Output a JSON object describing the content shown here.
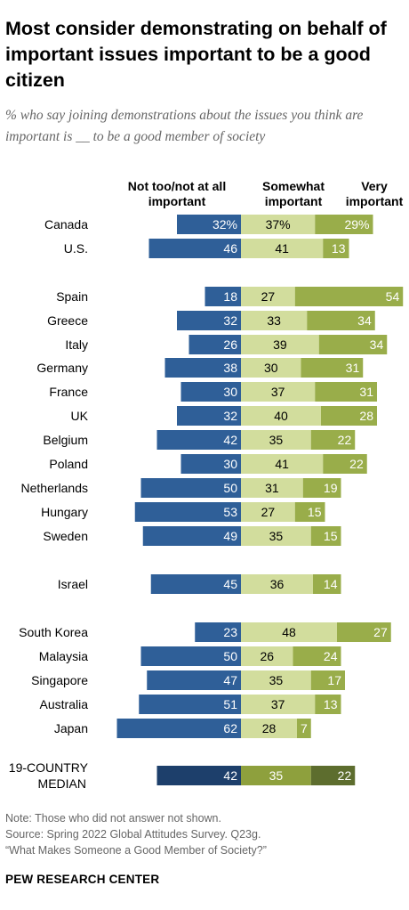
{
  "title": "Most consider demonstrating on behalf of important issues important to be a good citizen",
  "subtitle": "% who say joining demonstrations about the issues you think are important is __ to be a good member of society",
  "legend": {
    "not": "Not too/not at all important",
    "somewhat": "Somewhat important",
    "very": "Very important"
  },
  "colors": {
    "not": "#2f5f98",
    "somewhat": "#d2dd9d",
    "very": "#99ad4a",
    "median_not": "#1d3f6b",
    "median_somewhat": "#8ea03d",
    "median_very": "#5d6d2e"
  },
  "chart_data": {
    "type": "bar",
    "orientation": "horizontal-diverging",
    "series_names": [
      "Not too/not at all important",
      "Somewhat important",
      "Very important"
    ],
    "rows": [
      {
        "label": "Canada",
        "not": 32,
        "somewhat": 37,
        "very": 29,
        "labels": [
          "32%",
          "37%",
          "29%"
        ]
      },
      {
        "label": "U.S.",
        "not": 46,
        "somewhat": 41,
        "very": 13
      },
      {
        "label": "Spain",
        "not": 18,
        "somewhat": 27,
        "very": 54
      },
      {
        "label": "Greece",
        "not": 32,
        "somewhat": 33,
        "very": 34
      },
      {
        "label": "Italy",
        "not": 26,
        "somewhat": 39,
        "very": 34
      },
      {
        "label": "Germany",
        "not": 38,
        "somewhat": 30,
        "very": 31
      },
      {
        "label": "France",
        "not": 30,
        "somewhat": 37,
        "very": 31
      },
      {
        "label": "UK",
        "not": 32,
        "somewhat": 40,
        "very": 28
      },
      {
        "label": "Belgium",
        "not": 42,
        "somewhat": 35,
        "very": 22
      },
      {
        "label": "Poland",
        "not": 30,
        "somewhat": 41,
        "very": 22
      },
      {
        "label": "Netherlands",
        "not": 50,
        "somewhat": 31,
        "very": 19
      },
      {
        "label": "Hungary",
        "not": 53,
        "somewhat": 27,
        "very": 15
      },
      {
        "label": "Sweden",
        "not": 49,
        "somewhat": 35,
        "very": 15
      },
      {
        "label": "Israel",
        "not": 45,
        "somewhat": 36,
        "very": 14
      },
      {
        "label": "South Korea",
        "not": 23,
        "somewhat": 48,
        "very": 27
      },
      {
        "label": "Malaysia",
        "not": 50,
        "somewhat": 26,
        "very": 24
      },
      {
        "label": "Singapore",
        "not": 47,
        "somewhat": 35,
        "very": 17
      },
      {
        "label": "Australia",
        "not": 51,
        "somewhat": 37,
        "very": 13
      },
      {
        "label": "Japan",
        "not": 62,
        "somewhat": 28,
        "very": 7
      },
      {
        "label": "19-COUNTRY MEDIAN",
        "not": 42,
        "somewhat": 35,
        "very": 22,
        "median": true
      }
    ]
  },
  "notes": [
    "Note: Those who did not answer not shown.",
    "Source: Spring 2022 Global Attitudes Survey. Q23g.",
    "“What Makes Someone a Good Member of Society?”"
  ],
  "footer": "PEW RESEARCH CENTER"
}
